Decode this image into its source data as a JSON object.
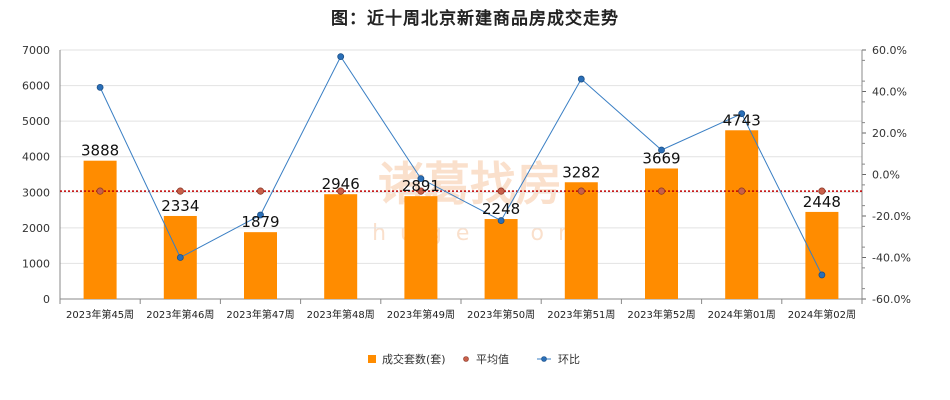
{
  "chart_data": {
    "type": "bar",
    "title": "图：近十周北京新建商品房成交走势",
    "categories": [
      "2023年第45周",
      "2023年第46周",
      "2023年第47周",
      "2023年第48周",
      "2023年第49周",
      "2023年第50周",
      "2023年第51周",
      "2023年第52周",
      "2024年第01周",
      "2024年第02周"
    ],
    "series": [
      {
        "name": "成交套数(套)",
        "type": "bar",
        "axis": "left",
        "values": [
          3888,
          2334,
          1879,
          2946,
          2891,
          2248,
          3282,
          3669,
          4743,
          2448
        ]
      },
      {
        "name": "平均值",
        "type": "line",
        "axis": "left",
        "values": [
          3033,
          3033,
          3033,
          3033,
          3033,
          3033,
          3033,
          3033,
          3033,
          3033
        ]
      },
      {
        "name": "环比",
        "type": "line",
        "axis": "right",
        "values": [
          0.42,
          -0.4,
          -0.195,
          0.568,
          -0.02,
          -0.222,
          0.46,
          0.118,
          0.293,
          -0.484
        ]
      }
    ],
    "ylim_left": [
      0,
      7000
    ],
    "yticks_left": [
      "0",
      "1000",
      "2000",
      "3000",
      "4000",
      "5000",
      "6000",
      "7000"
    ],
    "ylim_right": [
      -0.6,
      0.6
    ],
    "yticks_right": [
      "-60.0%",
      "-40.0%",
      "-20.0%",
      "0.0%",
      "20.0%",
      "40.0%",
      "60.0%"
    ],
    "grid": true,
    "legend_position": "bottom",
    "colors": {
      "bar": "#ff8c00",
      "average": "#c00000",
      "average_marker": "#c9604a",
      "mom": "#3a7fc4",
      "mom_marker": "#2a6fb8",
      "grid": "#e2e2e2"
    }
  },
  "watermark": {
    "text": "诸葛找房",
    "subtext": "zhuge.com"
  }
}
